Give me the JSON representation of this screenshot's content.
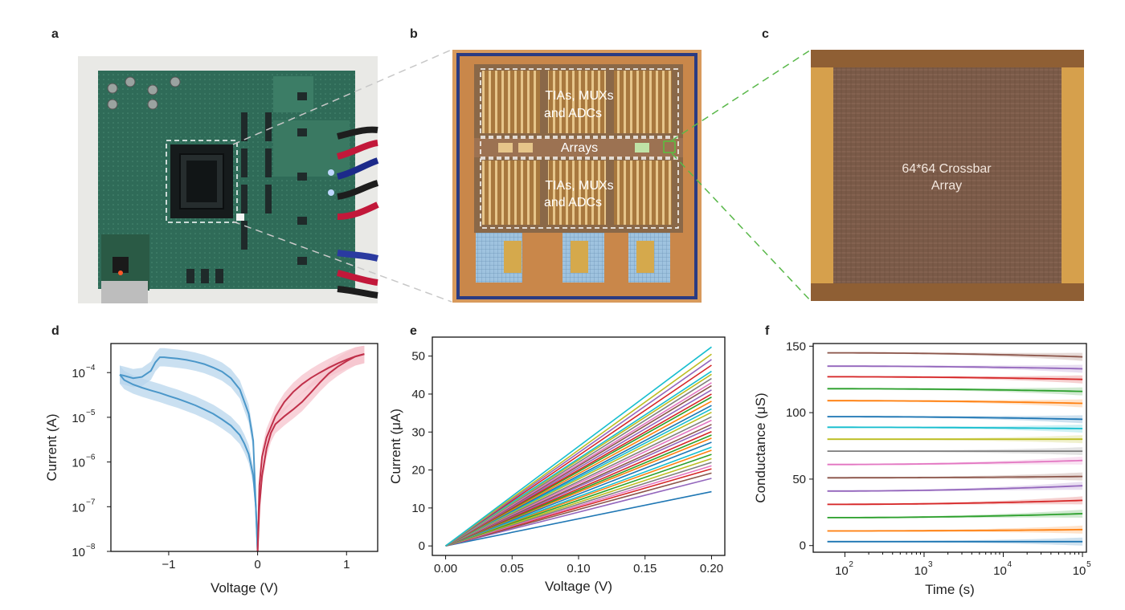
{
  "panel_labels": {
    "a": "a",
    "b": "b",
    "c": "c",
    "d": "d",
    "e": "e",
    "f": "f"
  },
  "panel_b": {
    "top_label_1": "TIAs, MUXs",
    "top_label_2": "and ADCs",
    "middle_label": "Arrays",
    "bottom_label_1": "TIAs, MUXs",
    "bottom_label_2": "and ADCs"
  },
  "panel_c": {
    "label_1": "64*64 Crossbar",
    "label_2": "Array"
  },
  "chart_data": [
    {
      "id": "d",
      "type": "line",
      "xlabel": "Voltage (V)",
      "ylabel": "Current (A)",
      "xlim": [
        -1.65,
        1.35
      ],
      "ylim_log10": [
        -8,
        -3.35
      ],
      "yscale": "log",
      "x_ticks": [
        -1,
        0,
        1
      ],
      "x_tick_labels": [
        "−1",
        "0",
        "1"
      ],
      "y_ticks": [
        -8,
        -7,
        -6,
        -5,
        -4
      ],
      "y_tick_labels": [
        "10",
        "10",
        "10",
        "10",
        "10"
      ],
      "y_tick_exponents": [
        "−8",
        "−7",
        "−6",
        "−5",
        "−4"
      ],
      "colors": {
        "negative_branch": "#4b97c9",
        "negative_band": "#b8d6ec",
        "positive_branch": "#c0304a",
        "positive_band": "#f5c3cc"
      },
      "series": [
        {
          "branch": "negative_set",
          "x": [
            0,
            -0.05,
            -0.1,
            -0.2,
            -0.3,
            -0.4,
            -0.5,
            -0.6,
            -0.7,
            -0.8,
            -0.9,
            -1.0,
            -1.05,
            -1.1,
            -1.15,
            -1.2,
            -1.3,
            -1.4,
            -1.5,
            -1.55
          ],
          "y": [
            1e-08,
            3e-06,
            1.2e-05,
            4.2e-05,
            7.5e-05,
            0.000105,
            0.00013,
            0.000155,
            0.000175,
            0.000192,
            0.000205,
            0.000215,
            0.00022,
            0.00022,
            0.00017,
            0.00011,
            8e-05,
            7.5e-05,
            8.5e-05,
            9e-05
          ]
        },
        {
          "branch": "negative_reset",
          "x": [
            -1.55,
            -1.5,
            -1.4,
            -1.3,
            -1.2,
            -1.1,
            -1.0,
            -0.9,
            -0.8,
            -0.7,
            -0.6,
            -0.5,
            -0.4,
            -0.3,
            -0.2,
            -0.15,
            -0.1,
            -0.05,
            -0.02,
            0
          ],
          "y": [
            9e-05,
            6.8e-05,
            5.4e-05,
            4.6e-05,
            4e-05,
            3.5e-05,
            3e-05,
            2.6e-05,
            2.2e-05,
            1.85e-05,
            1.5e-05,
            1.2e-05,
            9e-06,
            6.5e-06,
            4e-06,
            2.6e-06,
            1.5e-06,
            5e-07,
            1e-07,
            1e-08
          ]
        },
        {
          "branch": "positive_set",
          "x": [
            0,
            0.02,
            0.05,
            0.1,
            0.15,
            0.2,
            0.3,
            0.4,
            0.5,
            0.6,
            0.7,
            0.8,
            0.9,
            1.0,
            1.1,
            1.2
          ],
          "y": [
            1e-08,
            1e-07,
            5e-07,
            2e-06,
            4.5e-06,
            7e-06,
            1.05e-05,
            1.5e-05,
            2.2e-05,
            3.6e-05,
            6e-05,
            9.5e-05,
            0.000135,
            0.00018,
            0.00023,
            0.00026
          ]
        },
        {
          "branch": "positive_reset",
          "x": [
            1.2,
            1.1,
            1.0,
            0.9,
            0.8,
            0.7,
            0.6,
            0.5,
            0.4,
            0.3,
            0.2,
            0.1,
            0.05,
            0.02,
            0
          ],
          "y": [
            0.00026,
            0.00023,
            0.000195,
            0.00016,
            0.000128,
            0.0001,
            7.6e-05,
            5.5e-05,
            3.7e-05,
            2.2e-05,
            1.05e-05,
            3.5e-06,
            1.3e-06,
            3e-07,
            1e-08
          ]
        }
      ]
    },
    {
      "id": "e",
      "type": "line",
      "xlabel": "Voltage (V)",
      "ylabel": "Current (μA)",
      "xlim": [
        -0.01,
        0.21
      ],
      "ylim": [
        -2.5,
        55
      ],
      "x_ticks": [
        0,
        0.05,
        0.1,
        0.15,
        0.2
      ],
      "x_tick_labels": [
        "0.00",
        "0.05",
        "0.10",
        "0.15",
        "0.20"
      ],
      "y_ticks": [
        0,
        10,
        20,
        30,
        40,
        50
      ],
      "y_tick_labels": [
        "0",
        "10",
        "20",
        "30",
        "40",
        "50"
      ],
      "x": [
        0,
        0.2
      ],
      "end_values_at_0p2V": [
        14.3,
        17.8,
        19.2,
        20.3,
        21.1,
        22.0,
        23.0,
        24.1,
        25.2,
        26.0,
        27.3,
        28.4,
        29.2,
        30.1,
        31.2,
        32.0,
        33.1,
        34.0,
        35.2,
        36.1,
        37.0,
        38.1,
        39.2,
        40.0,
        41.1,
        42.2,
        43.0,
        44.1,
        45.2,
        46.0,
        47.6,
        49.1,
        50.5,
        52.4
      ],
      "series_colors": [
        "#1f77b4",
        "#9467bd",
        "#8c564b",
        "#d62728",
        "#e377c2",
        "#7f7f7f",
        "#bcbd22",
        "#2ca02c",
        "#ff7f0e",
        "#17becf",
        "#1f77b4",
        "#ff7f0e",
        "#2ca02c",
        "#d62728",
        "#9467bd",
        "#8c564b",
        "#e377c2",
        "#7f7f7f",
        "#bcbd22",
        "#17becf",
        "#1f77b4",
        "#ff7f0e",
        "#2ca02c",
        "#d62728",
        "#9467bd",
        "#8c564b",
        "#e377c2",
        "#7f7f7f",
        "#bcbd22",
        "#17becf",
        "#d62728",
        "#9467bd",
        "#bcbd22",
        "#17becf"
      ]
    },
    {
      "id": "f",
      "type": "line",
      "xlabel": "Time (s)",
      "ylabel": "Conductance (μS)",
      "xscale": "log",
      "xlim_log10": [
        1.6,
        5.05
      ],
      "ylim": [
        -5,
        152
      ],
      "x_ticks_log10": [
        2,
        3,
        4,
        5
      ],
      "x_tick_labels": [
        "10",
        "10",
        "10",
        "10"
      ],
      "x_tick_exponents": [
        "2",
        "3",
        "4",
        "5"
      ],
      "y_ticks": [
        0,
        50,
        100,
        150
      ],
      "y_tick_labels": [
        "0",
        "50",
        "100",
        "150"
      ],
      "levels": [
        {
          "start": 3,
          "end": 3,
          "color": "#1f77b4"
        },
        {
          "start": 11,
          "end": 12,
          "color": "#ff7f0e"
        },
        {
          "start": 21,
          "end": 24,
          "color": "#2ca02c"
        },
        {
          "start": 31,
          "end": 34,
          "color": "#d62728"
        },
        {
          "start": 41,
          "end": 45,
          "color": "#9467bd"
        },
        {
          "start": 51,
          "end": 52,
          "color": "#8c564b"
        },
        {
          "start": 61,
          "end": 64,
          "color": "#e377c2"
        },
        {
          "start": 71,
          "end": 71,
          "color": "#7f7f7f"
        },
        {
          "start": 80,
          "end": 80,
          "color": "#bcbd22"
        },
        {
          "start": 89,
          "end": 88,
          "color": "#17becf"
        },
        {
          "start": 97,
          "end": 95,
          "color": "#1f77b4"
        },
        {
          "start": 109,
          "end": 107,
          "color": "#ff7f0e"
        },
        {
          "start": 118,
          "end": 116,
          "color": "#2ca02c"
        },
        {
          "start": 127,
          "end": 125,
          "color": "#d62728"
        },
        {
          "start": 135,
          "end": 133,
          "color": "#9467bd"
        },
        {
          "start": 145,
          "end": 142,
          "color": "#8c564b"
        }
      ]
    }
  ]
}
